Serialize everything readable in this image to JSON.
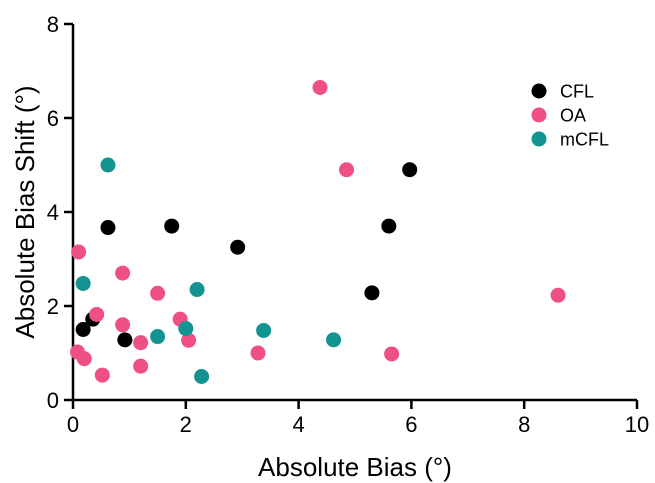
{
  "chart_data": {
    "type": "scatter",
    "title": "",
    "xlabel": "Absolute Bias (°)",
    "ylabel": "Absolute Bias Shift (°)",
    "xlim": [
      0,
      10
    ],
    "ylim": [
      0,
      8
    ],
    "x_ticks": [
      0,
      2,
      4,
      6,
      8,
      10
    ],
    "y_ticks": [
      0,
      2,
      4,
      6,
      8
    ],
    "grid": false,
    "legend_position": "top-right",
    "series": [
      {
        "name": "CFL",
        "color": "#000000",
        "points": [
          {
            "x": 0.18,
            "y": 1.5
          },
          {
            "x": 0.35,
            "y": 1.72
          },
          {
            "x": 0.62,
            "y": 3.67
          },
          {
            "x": 0.92,
            "y": 1.28
          },
          {
            "x": 1.75,
            "y": 3.7
          },
          {
            "x": 2.92,
            "y": 3.25
          },
          {
            "x": 5.3,
            "y": 2.28
          },
          {
            "x": 5.6,
            "y": 3.7
          },
          {
            "x": 5.97,
            "y": 4.9
          }
        ]
      },
      {
        "name": "OA",
        "color": "#EE4F86",
        "points": [
          {
            "x": 0.1,
            "y": 3.15
          },
          {
            "x": 0.08,
            "y": 1.02
          },
          {
            "x": 0.2,
            "y": 0.88
          },
          {
            "x": 0.42,
            "y": 1.82
          },
          {
            "x": 0.52,
            "y": 0.53
          },
          {
            "x": 0.88,
            "y": 2.7
          },
          {
            "x": 0.88,
            "y": 1.6
          },
          {
            "x": 1.2,
            "y": 1.22
          },
          {
            "x": 1.2,
            "y": 0.72
          },
          {
            "x": 1.5,
            "y": 2.27
          },
          {
            "x": 1.9,
            "y": 1.72
          },
          {
            "x": 2.05,
            "y": 1.27
          },
          {
            "x": 3.28,
            "y": 1.0
          },
          {
            "x": 4.38,
            "y": 6.65
          },
          {
            "x": 4.85,
            "y": 4.9
          },
          {
            "x": 5.65,
            "y": 0.98
          },
          {
            "x": 8.6,
            "y": 2.23
          }
        ]
      },
      {
        "name": "mCFL",
        "color": "#139391",
        "points": [
          {
            "x": 0.18,
            "y": 2.48
          },
          {
            "x": 0.62,
            "y": 5.0
          },
          {
            "x": 1.5,
            "y": 1.35
          },
          {
            "x": 2.0,
            "y": 1.52
          },
          {
            "x": 2.2,
            "y": 2.35
          },
          {
            "x": 2.28,
            "y": 0.5
          },
          {
            "x": 3.38,
            "y": 1.48
          },
          {
            "x": 4.62,
            "y": 1.28
          }
        ]
      }
    ]
  }
}
